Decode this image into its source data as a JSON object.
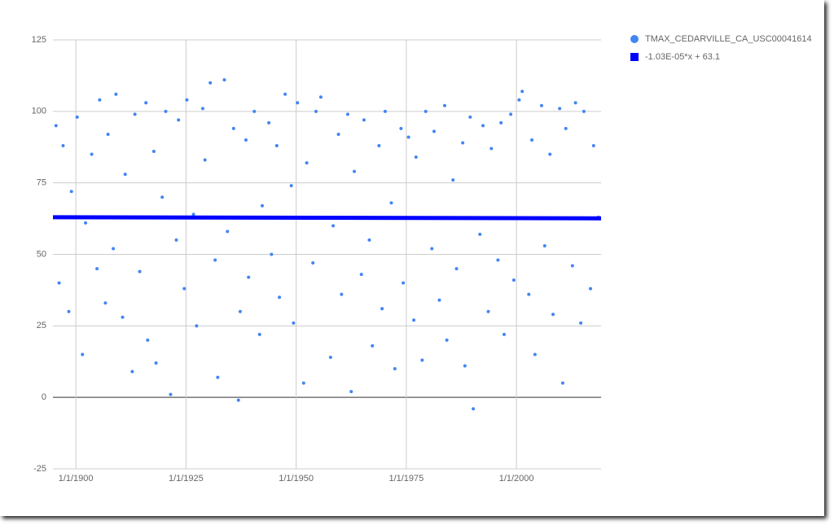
{
  "chart_data": {
    "type": "scatter",
    "series": [
      {
        "name": "TMAX_CEDARVILLE_CA_USC00041614",
        "color": "#4285f4",
        "type": "scatter",
        "x": [
          1895.5,
          1896.2,
          1897.1,
          1898.4,
          1899.0,
          1900.3,
          1901.5,
          1902.2,
          1903.6,
          1904.8,
          1905.4,
          1906.7,
          1907.3,
          1908.5,
          1909.1,
          1910.6,
          1911.2,
          1912.8,
          1913.4,
          1914.5,
          1915.9,
          1916.3,
          1917.7,
          1918.2,
          1919.6,
          1920.4,
          1921.5,
          1922.8,
          1923.3,
          1924.6,
          1925.2,
          1926.7,
          1927.4,
          1928.8,
          1929.3,
          1930.5,
          1931.6,
          1932.2,
          1933.7,
          1934.4,
          1935.8,
          1936.9,
          1937.3,
          1938.6,
          1939.2,
          1940.5,
          1941.7,
          1942.3,
          1943.8,
          1944.4,
          1945.6,
          1946.2,
          1947.5,
          1948.9,
          1949.4,
          1950.3,
          1951.7,
          1952.4,
          1953.8,
          1954.5,
          1955.6,
          1957.8,
          1958.4,
          1959.6,
          1960.3,
          1961.7,
          1962.5,
          1963.2,
          1964.8,
          1965.4,
          1966.6,
          1967.3,
          1968.8,
          1969.5,
          1970.2,
          1971.6,
          1972.4,
          1973.8,
          1974.3,
          1975.5,
          1976.7,
          1977.2,
          1978.6,
          1979.4,
          1980.8,
          1981.3,
          1982.5,
          1983.7,
          1984.2,
          1985.6,
          1986.4,
          1987.8,
          1988.3,
          1989.5,
          1990.2,
          1991.7,
          1992.4,
          1993.6,
          1994.3,
          1995.8,
          1996.5,
          1997.2,
          1998.7,
          1999.4,
          2000.6,
          2001.3,
          2002.8,
          2003.5,
          2004.2,
          2005.7,
          2006.4,
          2007.6,
          2008.3,
          2009.8,
          2010.5,
          2011.2,
          2012.7,
          2013.4,
          2014.6,
          2015.3,
          2016.8,
          2017.5,
          2018.6
        ],
        "values": [
          95,
          40,
          88,
          30,
          72,
          98,
          15,
          61,
          85,
          45,
          104,
          33,
          92,
          52,
          106,
          28,
          78,
          9,
          99,
          44,
          103,
          20,
          86,
          12,
          70,
          100,
          1,
          55,
          97,
          38,
          104,
          64,
          25,
          101,
          83,
          110,
          48,
          7,
          111,
          58,
          94,
          -1,
          30,
          90,
          42,
          100,
          22,
          67,
          96,
          50,
          88,
          35,
          106,
          74,
          26,
          103,
          5,
          82,
          47,
          100,
          105,
          14,
          60,
          92,
          36,
          99,
          2,
          79,
          43,
          97,
          55,
          18,
          88,
          31,
          100,
          68,
          10,
          94,
          40,
          91,
          27,
          84,
          13,
          100,
          52,
          93,
          34,
          102,
          20,
          76,
          45,
          89,
          11,
          98,
          -4,
          57,
          95,
          30,
          87,
          48,
          96,
          22,
          99,
          41,
          104,
          107,
          36,
          90,
          15,
          102,
          53,
          85,
          29,
          101,
          5,
          94,
          46,
          103,
          26,
          100,
          38,
          88,
          63
        ]
      },
      {
        "name": "-1.03E-05*x + 63.1",
        "color": "#0000ff",
        "type": "line",
        "x": [
          1894.8,
          2019.2
        ],
        "values": [
          63,
          62.6
        ]
      }
    ],
    "xlim": [
      1894.8,
      2019.2
    ],
    "xticks": [
      {
        "value": 1900,
        "label": "1/1/1900"
      },
      {
        "value": 1925,
        "label": "1/1/1925"
      },
      {
        "value": 1950,
        "label": "1/1/1950"
      },
      {
        "value": 1975,
        "label": "1/1/1975"
      },
      {
        "value": 2000,
        "label": "1/1/2000"
      }
    ],
    "ylim": [
      -25,
      125
    ],
    "yticks": [
      -25,
      0,
      25,
      50,
      75,
      100,
      125
    ],
    "grid": true,
    "legend": "right"
  }
}
